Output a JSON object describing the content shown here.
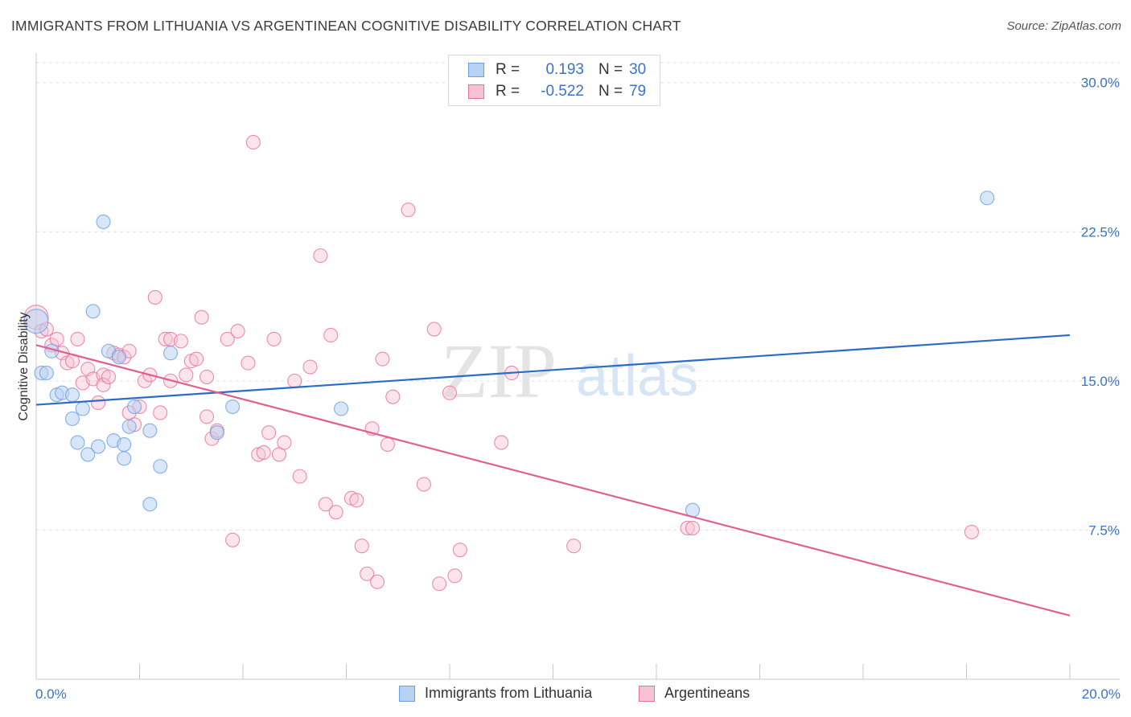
{
  "title": "IMMIGRANTS FROM LITHUANIA VS ARGENTINEAN COGNITIVE DISABILITY CORRELATION CHART",
  "source": "Source: ZipAtlas.com",
  "colors": {
    "blue": "#6a9fe0",
    "blue_fill": "#b8d2f3",
    "pink": "#e8709a",
    "pink_fill": "#f6c3d4",
    "blue_line": "#2a6bcb",
    "pink_line": "#e0608e",
    "axis_text": "#3a73c7",
    "grid": "#e0e0e0"
  },
  "legend": {
    "series1": {
      "r_label": "R =",
      "r_value": "0.193",
      "n_label": "N =",
      "n_value": "30"
    },
    "series2": {
      "r_label": "R =",
      "r_value": "-0.522",
      "n_label": "N =",
      "n_value": "79"
    }
  },
  "watermark": {
    "zip": "ZIP",
    "atlas": "atlas"
  },
  "chart_data": {
    "type": "scatter",
    "title": "IMMIGRANTS FROM LITHUANIA VS ARGENTINEAN COGNITIVE DISABILITY CORRELATION CHART",
    "xlabel": "",
    "ylabel": "Cognitive Disability",
    "xlim": [
      0,
      20
    ],
    "ylim": [
      0,
      31
    ],
    "x_tick_labels": [
      "0.0%",
      "20.0%"
    ],
    "y_ticks": [
      7.5,
      15.0,
      22.5,
      30.0
    ],
    "y_tick_labels": [
      "7.5%",
      "15.0%",
      "22.5%",
      "30.0%"
    ],
    "grid": true,
    "series": [
      {
        "name": "Immigrants from Lithuania",
        "color": "blue",
        "trendline": {
          "x": [
            0,
            20
          ],
          "y": [
            13.8,
            17.3
          ]
        },
        "points": [
          [
            0.0,
            18.0
          ],
          [
            0.1,
            15.4
          ],
          [
            0.2,
            15.4
          ],
          [
            0.3,
            16.5
          ],
          [
            0.4,
            14.3
          ],
          [
            0.5,
            14.4
          ],
          [
            0.7,
            14.3
          ],
          [
            0.7,
            13.1
          ],
          [
            0.8,
            11.9
          ],
          [
            0.9,
            13.6
          ],
          [
            1.0,
            11.3
          ],
          [
            1.1,
            18.5
          ],
          [
            1.2,
            11.7
          ],
          [
            1.3,
            23.0
          ],
          [
            1.4,
            16.5
          ],
          [
            1.5,
            12.0
          ],
          [
            1.6,
            16.2
          ],
          [
            1.7,
            11.8
          ],
          [
            1.7,
            11.1
          ],
          [
            1.8,
            12.7
          ],
          [
            1.9,
            13.7
          ],
          [
            2.2,
            12.5
          ],
          [
            2.2,
            8.8
          ],
          [
            2.4,
            10.7
          ],
          [
            2.6,
            16.4
          ],
          [
            3.5,
            12.4
          ],
          [
            3.8,
            13.7
          ],
          [
            5.9,
            13.6
          ],
          [
            12.7,
            8.5
          ],
          [
            18.4,
            24.2
          ]
        ]
      },
      {
        "name": "Argentineans",
        "color": "pink",
        "trendline": {
          "x": [
            0,
            20
          ],
          "y": [
            16.8,
            3.2
          ]
        },
        "points": [
          [
            0.0,
            18.2
          ],
          [
            0.1,
            17.5
          ],
          [
            0.2,
            17.6
          ],
          [
            0.3,
            16.8
          ],
          [
            0.4,
            17.1
          ],
          [
            0.5,
            16.4
          ],
          [
            0.6,
            15.9
          ],
          [
            0.7,
            16.0
          ],
          [
            0.8,
            17.1
          ],
          [
            0.9,
            14.9
          ],
          [
            1.0,
            15.6
          ],
          [
            1.1,
            15.1
          ],
          [
            1.2,
            13.9
          ],
          [
            1.3,
            15.3
          ],
          [
            1.3,
            14.8
          ],
          [
            1.4,
            15.2
          ],
          [
            1.5,
            16.4
          ],
          [
            1.6,
            16.3
          ],
          [
            1.7,
            16.2
          ],
          [
            1.8,
            16.5
          ],
          [
            1.8,
            13.4
          ],
          [
            1.9,
            12.8
          ],
          [
            2.0,
            13.7
          ],
          [
            2.1,
            15.0
          ],
          [
            2.2,
            15.3
          ],
          [
            2.3,
            19.2
          ],
          [
            2.4,
            13.4
          ],
          [
            2.5,
            17.1
          ],
          [
            2.6,
            17.1
          ],
          [
            2.6,
            15.0
          ],
          [
            2.8,
            17.0
          ],
          [
            2.9,
            15.3
          ],
          [
            3.0,
            16.0
          ],
          [
            3.1,
            16.1
          ],
          [
            3.2,
            18.2
          ],
          [
            3.3,
            15.2
          ],
          [
            3.3,
            13.2
          ],
          [
            3.4,
            12.1
          ],
          [
            3.5,
            12.5
          ],
          [
            3.7,
            17.1
          ],
          [
            3.8,
            7.0
          ],
          [
            3.9,
            17.5
          ],
          [
            4.1,
            15.9
          ],
          [
            4.2,
            27.0
          ],
          [
            4.3,
            11.3
          ],
          [
            4.4,
            11.4
          ],
          [
            4.5,
            12.4
          ],
          [
            4.6,
            17.1
          ],
          [
            4.7,
            11.3
          ],
          [
            4.8,
            11.9
          ],
          [
            5.0,
            15.0
          ],
          [
            5.1,
            10.2
          ],
          [
            5.3,
            15.7
          ],
          [
            5.5,
            21.3
          ],
          [
            5.6,
            8.8
          ],
          [
            5.7,
            17.3
          ],
          [
            5.8,
            8.4
          ],
          [
            6.1,
            9.1
          ],
          [
            6.2,
            9.0
          ],
          [
            6.3,
            6.7
          ],
          [
            6.4,
            5.3
          ],
          [
            6.5,
            12.6
          ],
          [
            6.6,
            4.9
          ],
          [
            6.7,
            16.1
          ],
          [
            6.8,
            11.8
          ],
          [
            6.9,
            14.2
          ],
          [
            7.2,
            23.6
          ],
          [
            7.5,
            9.8
          ],
          [
            7.7,
            17.6
          ],
          [
            7.8,
            4.8
          ],
          [
            8.0,
            14.4
          ],
          [
            8.1,
            5.2
          ],
          [
            8.2,
            6.5
          ],
          [
            9.0,
            11.9
          ],
          [
            9.2,
            15.4
          ],
          [
            10.4,
            6.7
          ],
          [
            12.6,
            7.6
          ],
          [
            12.7,
            7.6
          ],
          [
            18.1,
            7.4
          ]
        ]
      }
    ]
  },
  "bottom_legend": [
    {
      "label": "Immigrants from Lithuania"
    },
    {
      "label": "Argentineans"
    }
  ]
}
